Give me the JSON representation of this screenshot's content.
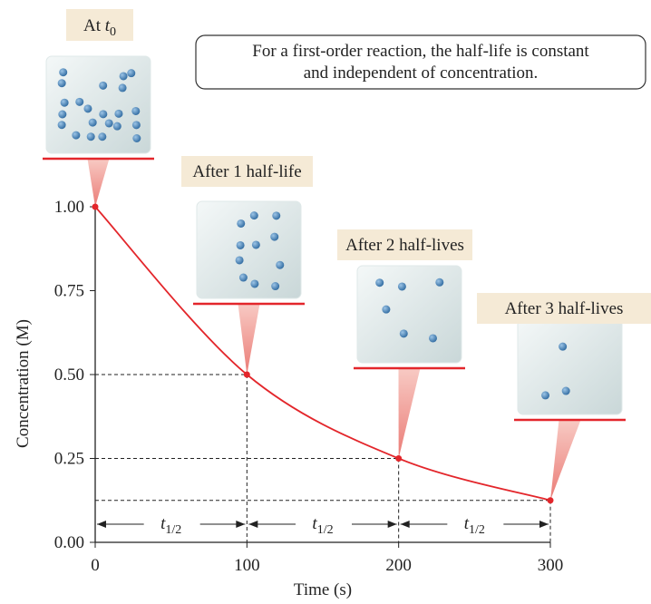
{
  "chart_data": {
    "type": "line",
    "x_label": "Time (s)",
    "y_label": "Concentration (M)",
    "x": [
      0,
      100,
      200,
      300
    ],
    "values": [
      1.0,
      0.5,
      0.25,
      0.125
    ],
    "color": "#e3262b",
    "xlim": [
      0,
      300
    ],
    "xticks": [
      0,
      100,
      200,
      300
    ],
    "ylim": [
      0,
      1
    ],
    "yticks": [
      {
        "value": 0,
        "label": "0.00"
      },
      {
        "value": 0.25,
        "label": "0.25"
      },
      {
        "value": 0.5,
        "label": "0.50"
      },
      {
        "value": 0.75,
        "label": "0.75"
      },
      {
        "value": 1,
        "label": "1.00"
      }
    ],
    "note_lines": [
      "For a first-order reaction, the half-life is constant",
      "and independent of concentration."
    ],
    "start_label": {
      "text": "At",
      "symbol": "t",
      "subscript": "0"
    },
    "snapshot_labels": [
      "After 1 half-life",
      "After 2 half-lives",
      "After 3 half-lives"
    ],
    "interval_label": {
      "symbol": "t",
      "subscript": "1/2"
    }
  }
}
